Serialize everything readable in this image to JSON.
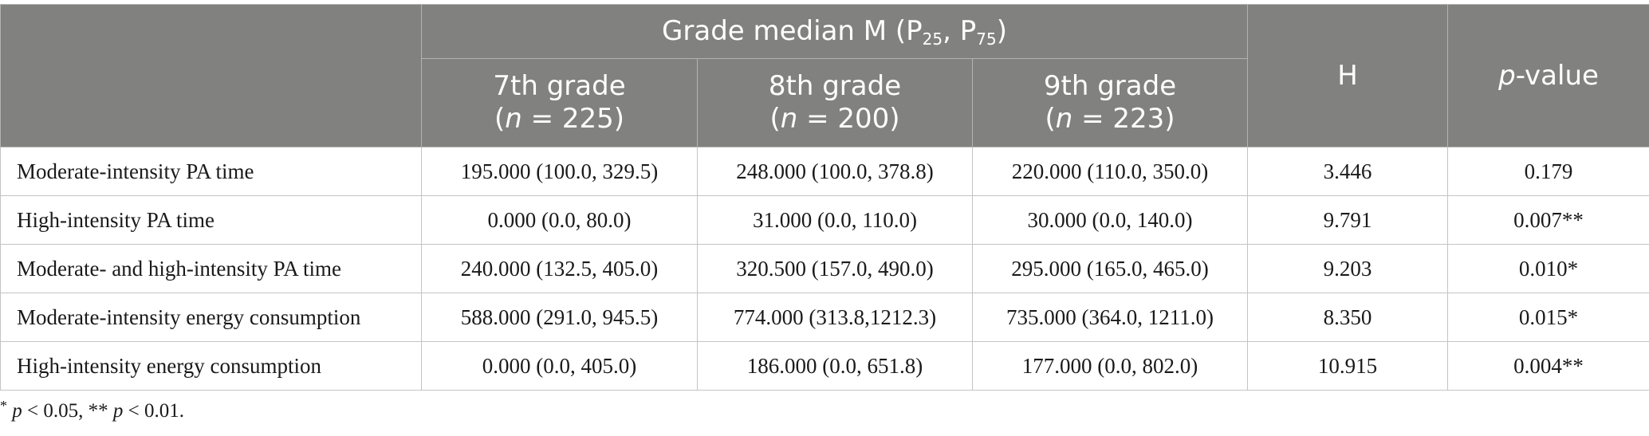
{
  "header": {
    "group_main": "Grade median M (P",
    "group_sub1": "25",
    "group_sep": ", P",
    "group_sub2": "75",
    "group_close": ")",
    "h_label": "H",
    "p_italic": "p",
    "p_rest": "-value",
    "grades": [
      {
        "name": "7th grade",
        "open": "(",
        "n": "n",
        "count": " = 225)"
      },
      {
        "name": "8th grade",
        "open": "(",
        "n": "n",
        "count": " = 200)"
      },
      {
        "name": "9th grade",
        "open": "(",
        "n": "n",
        "count": " = 223)"
      }
    ]
  },
  "rows": [
    {
      "label": "Moderate-intensity PA time",
      "g7": "195.000 (100.0, 329.5)",
      "g8": "248.000 (100.0, 378.8)",
      "g9": "220.000 (110.0, 350.0)",
      "h": "3.446",
      "p": "0.179"
    },
    {
      "label": "High-intensity PA time",
      "g7": "0.000 (0.0, 80.0)",
      "g8": "31.000 (0.0, 110.0)",
      "g9": "30.000 (0.0, 140.0)",
      "h": "9.791",
      "p": "0.007**"
    },
    {
      "label": "Moderate- and high-intensity PA time",
      "g7": "240.000 (132.5, 405.0)",
      "g8": "320.500 (157.0, 490.0)",
      "g9": "295.000 (165.0, 465.0)",
      "h": "9.203",
      "p": "0.010*"
    },
    {
      "label": "Moderate-intensity energy consumption",
      "g7": "588.000 (291.0, 945.5)",
      "g8": "774.000 (313.8,1212.3)",
      "g9": "735.000 (364.0, 1211.0)",
      "h": "8.350",
      "p": "0.015*"
    },
    {
      "label": "High-intensity energy consumption",
      "g7": "0.000 (0.0, 405.0)",
      "g8": "186.000 (0.0, 651.8)",
      "g9": "177.000 (0.0, 802.0)",
      "h": "10.915",
      "p": "0.004**"
    }
  ],
  "footnote": {
    "star1": "*",
    "p1": "p",
    "t1": " < 0.05, ** ",
    "p2": "p",
    "t2": " < 0.01."
  }
}
